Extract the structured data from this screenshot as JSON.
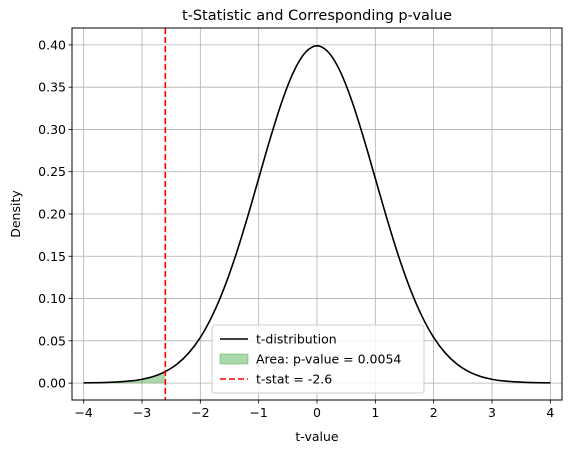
{
  "chart_data": {
    "type": "line",
    "title": "t-Statistic and Corresponding p-value",
    "xlabel": "t-value",
    "ylabel": "Density",
    "xlim": [
      -4.2,
      4.2
    ],
    "ylim": [
      -0.02,
      0.42
    ],
    "xticks": [
      -4,
      -3,
      -2,
      -1,
      0,
      1,
      2,
      3,
      4
    ],
    "xtick_labels": [
      "−4",
      "−3",
      "−2",
      "−1",
      "0",
      "1",
      "2",
      "3",
      "4"
    ],
    "yticks": [
      0.0,
      0.05,
      0.1,
      0.15,
      0.2,
      0.25,
      0.3,
      0.35,
      0.4
    ],
    "ytick_labels": [
      "0.00",
      "0.05",
      "0.10",
      "0.15",
      "0.20",
      "0.25",
      "0.30",
      "0.35",
      "0.40"
    ],
    "grid": true,
    "legend_position": "lower-center",
    "series": [
      {
        "name": "t-distribution",
        "kind": "line",
        "color": "#000000",
        "x": [
          -4.0,
          -3.6,
          -3.2,
          -3.0,
          -2.8,
          -2.6,
          -2.4,
          -2.2,
          -2.0,
          -1.8,
          -1.6,
          -1.4,
          -1.2,
          -1.0,
          -0.8,
          -0.6,
          -0.4,
          -0.2,
          0.0,
          0.2,
          0.4,
          0.6,
          0.8,
          1.0,
          1.2,
          1.4,
          1.6,
          1.8,
          2.0,
          2.2,
          2.4,
          2.6,
          2.8,
          3.0,
          3.2,
          3.6,
          4.0
        ],
        "y": [
          0.0003,
          0.0008,
          0.0025,
          0.0045,
          0.0079,
          0.0136,
          0.0224,
          0.0355,
          0.054,
          0.079,
          0.1109,
          0.1497,
          0.1942,
          0.242,
          0.2897,
          0.3332,
          0.3683,
          0.391,
          0.3989,
          0.391,
          0.3683,
          0.3332,
          0.2897,
          0.242,
          0.1942,
          0.1497,
          0.1109,
          0.079,
          0.054,
          0.0355,
          0.0224,
          0.0136,
          0.0079,
          0.0045,
          0.0025,
          0.0008,
          0.0003
        ]
      },
      {
        "name": "Area: p-value = 0.0054",
        "kind": "area",
        "color": "#2ca02c",
        "opacity": 0.4,
        "x": [
          -4.0,
          -3.8,
          -3.6,
          -3.4,
          -3.2,
          -3.0,
          -2.8,
          -2.6
        ],
        "y": [
          0.0003,
          0.0005,
          0.0008,
          0.0014,
          0.0025,
          0.0045,
          0.0079,
          0.0136
        ]
      },
      {
        "name": "t-stat = -2.6",
        "kind": "vline",
        "color": "#ff0000",
        "dashed": true,
        "x": -2.6
      }
    ]
  }
}
